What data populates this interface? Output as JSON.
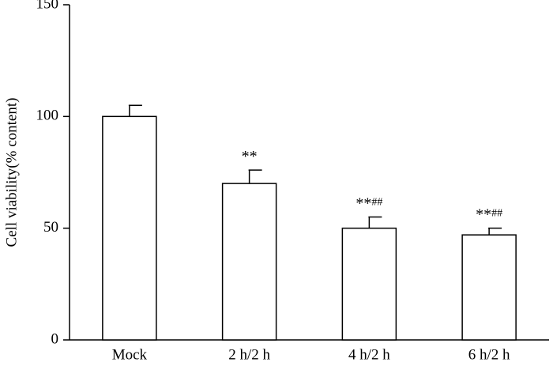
{
  "chart_data": {
    "type": "bar",
    "y_label": "Cell viability(% content)",
    "categories": [
      "Mock",
      "2 h/2 h",
      "4 h/2 h",
      "6 h/2 h"
    ],
    "values": [
      100,
      70,
      50,
      47
    ],
    "errors": [
      5,
      6,
      5,
      3
    ],
    "significance": [
      null,
      "**",
      "**",
      "**"
    ],
    "significance2": [
      null,
      null,
      "##",
      "##"
    ],
    "color": "#ffffff",
    "ylim": [
      0,
      150
    ],
    "yticks": [
      0,
      50,
      100,
      150
    ],
    "grid": false
  }
}
